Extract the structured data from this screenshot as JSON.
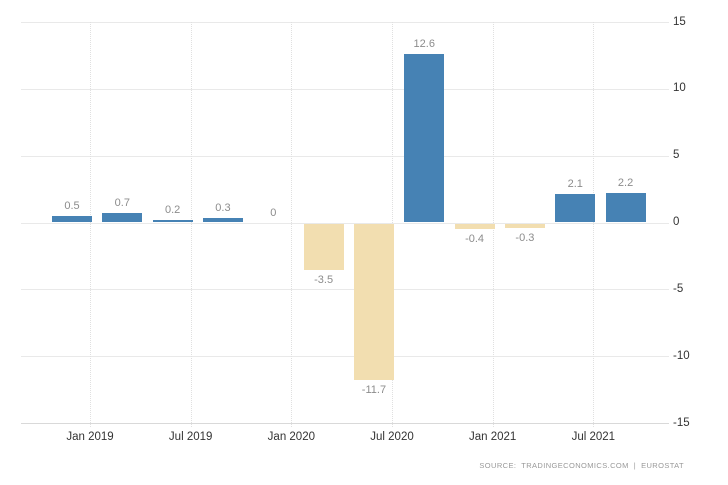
{
  "chart_data": {
    "type": "bar",
    "title": "",
    "xlabel": "",
    "ylabel": "",
    "values": [
      0.5,
      0.7,
      0.2,
      0.3,
      0,
      -3.5,
      -11.7,
      12.6,
      -0.4,
      -0.3,
      2.1,
      2.2
    ],
    "bar_labels": [
      "0.5",
      "0.7",
      "0.2",
      "0.3",
      "0",
      "-3.5",
      "-11.7",
      "12.6",
      "-0.4",
      "-0.3",
      "2.1",
      "2.2"
    ],
    "x_ticks": [
      "Jan 2019",
      "Jul 2019",
      "Jan 2020",
      "Jul 2020",
      "Jan 2021",
      "Jul 2021"
    ],
    "y_ticks": [
      15,
      10,
      5,
      0,
      -5,
      -10,
      -15
    ],
    "ylim": [
      -15,
      15
    ],
    "grid": true,
    "legend": "none",
    "colors": {
      "positive_bar": "#4682b4",
      "negative_bar": "#f2deb0",
      "gridline": "#e9e9e9",
      "baseline": "#d9d9d9",
      "vertical_gridline": "#e0e0e0",
      "axis_label": "#333333",
      "value_label": "#8c8c8c",
      "source_text": "#999999",
      "background": "#ffffff"
    },
    "source": "SOURCE:  TRADINGECONOMICS.COM  |  EUROSTAT"
  }
}
